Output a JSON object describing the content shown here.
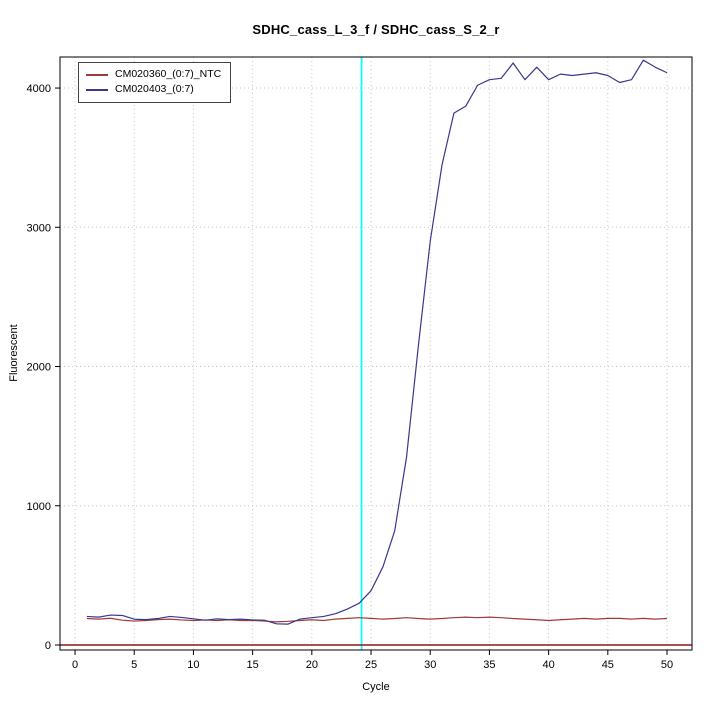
{
  "chart_data": {
    "type": "line",
    "title": "SDHC_cass_L_3_f / SDHC_cass_S_2_r",
    "xlabel": "Cycle",
    "ylabel": "Fluorescent",
    "xlim": [
      -1.27,
      52.11
    ],
    "ylim": [
      -36,
      4223
    ],
    "xticks": [
      0,
      5,
      10,
      15,
      20,
      25,
      30,
      35,
      40,
      45,
      50
    ],
    "yticks": [
      0,
      1000,
      2000,
      3000,
      4000
    ],
    "grid": "dotted",
    "legend_position": "top-left",
    "x": [
      1,
      2,
      3,
      4,
      5,
      6,
      7,
      8,
      9,
      10,
      11,
      12,
      13,
      14,
      15,
      16,
      17,
      18,
      19,
      20,
      21,
      22,
      23,
      24,
      25,
      26,
      27,
      28,
      29,
      30,
      31,
      32,
      33,
      34,
      35,
      36,
      37,
      38,
      39,
      40,
      41,
      42,
      43,
      44,
      45,
      46,
      47,
      48,
      49,
      50
    ],
    "series": [
      {
        "name": "CM020360_(0:7)_NTC",
        "color": "#a03939",
        "values": [
          190,
          186,
          192,
          178,
          172,
          176,
          182,
          186,
          180,
          176,
          180,
          176,
          181,
          176,
          176,
          172,
          166,
          170,
          176,
          181,
          176,
          186,
          191,
          196,
          191,
          186,
          190,
          196,
          190,
          186,
          190,
          196,
          200,
          196,
          200,
          196,
          190,
          186,
          181,
          176,
          181,
          186,
          191,
          186,
          191,
          191,
          186,
          191,
          186,
          190
        ]
      },
      {
        "name": "CM020403_(0:7)",
        "color": "#38388f",
        "values": [
          205,
          200,
          215,
          212,
          185,
          182,
          190,
          205,
          198,
          188,
          178,
          188,
          182,
          186,
          180,
          178,
          152,
          150,
          186,
          196,
          205,
          225,
          258,
          300,
          390,
          560,
          820,
          1350,
          2150,
          2900,
          3450,
          3820,
          3870,
          4020,
          4060,
          4070,
          4180,
          4060,
          4150,
          4060,
          4100,
          4090,
          4100,
          4110,
          4090,
          4040,
          4060,
          4200,
          4150,
          4110
        ]
      }
    ],
    "baseline_line": {
      "value": 0,
      "color": "#8b1a1a"
    },
    "marker_line": {
      "cycle": 24.2,
      "color": "#00ffff"
    }
  }
}
